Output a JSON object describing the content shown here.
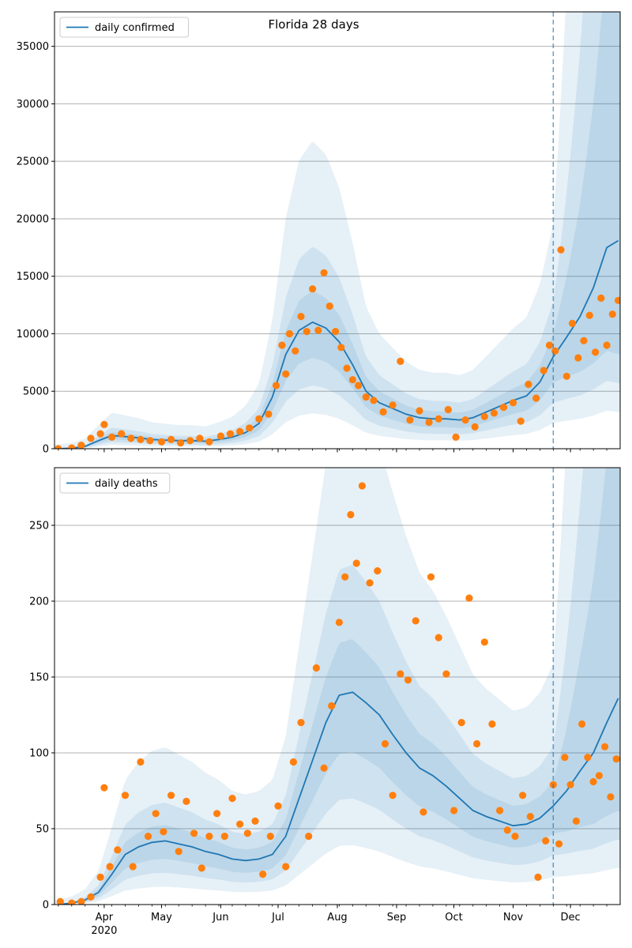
{
  "figure": {
    "title": "Florida 28 days"
  },
  "chart_data": [
    {
      "type": "line",
      "title": "Florida 28 days",
      "legend": {
        "label": "daily confirmed",
        "placement": "top-left"
      },
      "ylim": [
        0,
        38000
      ],
      "yticks": [
        0,
        5000,
        10000,
        15000,
        20000,
        25000,
        30000,
        35000
      ],
      "grid": "horizontal",
      "forecast_start": "2020-11-22",
      "series": [
        {
          "name": "daily confirmed",
          "x": [
            "2020-03-08",
            "2020-03-15",
            "2020-03-22",
            "2020-03-29",
            "2020-04-05",
            "2020-04-12",
            "2020-04-19",
            "2020-04-26",
            "2020-05-03",
            "2020-05-10",
            "2020-05-17",
            "2020-05-24",
            "2020-05-31",
            "2020-06-07",
            "2020-06-14",
            "2020-06-21",
            "2020-06-28",
            "2020-07-05",
            "2020-07-12",
            "2020-07-19",
            "2020-07-26",
            "2020-08-02",
            "2020-08-09",
            "2020-08-16",
            "2020-08-23",
            "2020-08-30",
            "2020-09-06",
            "2020-09-13",
            "2020-09-20",
            "2020-09-27",
            "2020-10-04",
            "2020-10-11",
            "2020-10-18",
            "2020-10-25",
            "2020-11-01",
            "2020-11-08",
            "2020-11-15",
            "2020-11-22",
            "2020-11-29",
            "2020-12-06",
            "2020-12-13",
            "2020-12-20",
            "2020-12-26"
          ],
          "values": [
            0,
            50,
            200,
            700,
            1150,
            1050,
            950,
            800,
            750,
            700,
            700,
            650,
            800,
            1000,
            1400,
            2200,
            4500,
            8200,
            10300,
            11000,
            10500,
            9300,
            7300,
            5000,
            4000,
            3500,
            3000,
            2700,
            2600,
            2600,
            2500,
            2700,
            3200,
            3700,
            4200,
            4600,
            5800,
            8000,
            9700,
            11500,
            14000,
            17500,
            18100
          ]
        }
      ],
      "observed": {
        "x": [
          "2020-03-08",
          "2020-03-15",
          "2020-03-20",
          "2020-03-25",
          "2020-03-30",
          "2020-04-01",
          "2020-04-05",
          "2020-04-10",
          "2020-04-15",
          "2020-04-20",
          "2020-04-25",
          "2020-05-01",
          "2020-05-06",
          "2020-05-11",
          "2020-05-16",
          "2020-05-21",
          "2020-05-26",
          "2020-06-01",
          "2020-06-06",
          "2020-06-11",
          "2020-06-16",
          "2020-06-21",
          "2020-06-26",
          "2020-06-30",
          "2020-07-03",
          "2020-07-05",
          "2020-07-07",
          "2020-07-10",
          "2020-07-13",
          "2020-07-16",
          "2020-07-19",
          "2020-07-22",
          "2020-07-25",
          "2020-07-28",
          "2020-07-31",
          "2020-08-03",
          "2020-08-06",
          "2020-08-09",
          "2020-08-12",
          "2020-08-16",
          "2020-08-20",
          "2020-08-25",
          "2020-08-30",
          "2020-09-03",
          "2020-09-08",
          "2020-09-13",
          "2020-09-18",
          "2020-09-23",
          "2020-09-28",
          "2020-10-02",
          "2020-10-07",
          "2020-10-12",
          "2020-10-17",
          "2020-10-22",
          "2020-10-27",
          "2020-11-01",
          "2020-11-05",
          "2020-11-09",
          "2020-11-13",
          "2020-11-17",
          "2020-11-20",
          "2020-11-23",
          "2020-11-26",
          "2020-11-29",
          "2020-12-02",
          "2020-12-05",
          "2020-12-08",
          "2020-12-11",
          "2020-12-14",
          "2020-12-17",
          "2020-12-20",
          "2020-12-23",
          "2020-12-26"
        ],
        "values": [
          0,
          60,
          300,
          900,
          1300,
          2100,
          1000,
          1300,
          900,
          800,
          700,
          600,
          800,
          500,
          700,
          900,
          600,
          1100,
          1300,
          1500,
          1800,
          2600,
          3000,
          5500,
          9000,
          6500,
          10000,
          8500,
          11500,
          10200,
          13900,
          10300,
          15300,
          12400,
          10200,
          8800,
          7000,
          6000,
          5500,
          4500,
          4200,
          3200,
          3800,
          7600,
          2500,
          3300,
          2300,
          2600,
          3400,
          1000,
          2500,
          1900,
          2800,
          3100,
          3600,
          4000,
          2400,
          5600,
          4400,
          6800,
          9000,
          8500,
          17300,
          6300,
          10900,
          7900,
          9400,
          11600,
          8400,
          13100,
          9000,
          11700,
          12900
        ]
      }
    },
    {
      "type": "line",
      "legend": {
        "label": "daily deaths",
        "placement": "top-left"
      },
      "ylim": [
        0,
        288
      ],
      "yticks": [
        0,
        50,
        100,
        150,
        200,
        250
      ],
      "grid": "horizontal",
      "forecast_start": "2020-11-22",
      "x_ticks": [
        "Apr",
        "May",
        "Jun",
        "Jul",
        "Aug",
        "Sep",
        "Oct",
        "Nov",
        "Dec"
      ],
      "x_year_label": "2020",
      "series": [
        {
          "name": "daily deaths",
          "x": [
            "2020-03-08",
            "2020-03-15",
            "2020-03-22",
            "2020-03-29",
            "2020-04-05",
            "2020-04-12",
            "2020-04-19",
            "2020-04-26",
            "2020-05-03",
            "2020-05-10",
            "2020-05-17",
            "2020-05-24",
            "2020-05-31",
            "2020-06-07",
            "2020-06-14",
            "2020-06-21",
            "2020-06-28",
            "2020-07-05",
            "2020-07-12",
            "2020-07-19",
            "2020-07-26",
            "2020-08-02",
            "2020-08-09",
            "2020-08-16",
            "2020-08-23",
            "2020-08-30",
            "2020-09-06",
            "2020-09-13",
            "2020-09-20",
            "2020-09-27",
            "2020-10-04",
            "2020-10-11",
            "2020-10-18",
            "2020-10-25",
            "2020-11-01",
            "2020-11-08",
            "2020-11-15",
            "2020-11-22",
            "2020-11-29",
            "2020-12-06",
            "2020-12-13",
            "2020-12-20",
            "2020-12-26"
          ],
          "values": [
            0,
            1,
            3,
            8,
            20,
            33,
            38,
            41,
            42,
            40,
            38,
            35,
            33,
            30,
            29,
            30,
            33,
            45,
            70,
            95,
            120,
            138,
            140,
            133,
            125,
            112,
            100,
            90,
            85,
            78,
            70,
            62,
            58,
            55,
            52,
            53,
            57,
            65,
            75,
            88,
            100,
            120,
            136
          ]
        }
      ],
      "observed": {
        "x": [
          "2020-03-09",
          "2020-03-15",
          "2020-03-20",
          "2020-03-25",
          "2020-03-30",
          "2020-04-01",
          "2020-04-04",
          "2020-04-08",
          "2020-04-12",
          "2020-04-16",
          "2020-04-20",
          "2020-04-24",
          "2020-04-28",
          "2020-05-02",
          "2020-05-06",
          "2020-05-10",
          "2020-05-14",
          "2020-05-18",
          "2020-05-22",
          "2020-05-26",
          "2020-05-30",
          "2020-06-03",
          "2020-06-07",
          "2020-06-11",
          "2020-06-15",
          "2020-06-19",
          "2020-06-23",
          "2020-06-27",
          "2020-07-01",
          "2020-07-05",
          "2020-07-09",
          "2020-07-13",
          "2020-07-17",
          "2020-07-21",
          "2020-07-25",
          "2020-07-29",
          "2020-08-02",
          "2020-08-05",
          "2020-08-08",
          "2020-08-11",
          "2020-08-14",
          "2020-08-18",
          "2020-08-22",
          "2020-08-26",
          "2020-08-30",
          "2020-09-03",
          "2020-09-07",
          "2020-09-11",
          "2020-09-15",
          "2020-09-19",
          "2020-09-23",
          "2020-09-27",
          "2020-10-01",
          "2020-10-05",
          "2020-10-09",
          "2020-10-13",
          "2020-10-17",
          "2020-10-21",
          "2020-10-25",
          "2020-10-29",
          "2020-11-02",
          "2020-11-06",
          "2020-11-10",
          "2020-11-14",
          "2020-11-18",
          "2020-11-22",
          "2020-11-25",
          "2020-11-28",
          "2020-12-01",
          "2020-12-04",
          "2020-12-07",
          "2020-12-10",
          "2020-12-13",
          "2020-12-16",
          "2020-12-19",
          "2020-12-22",
          "2020-12-25"
        ],
        "values": [
          2,
          1,
          2,
          5,
          18,
          77,
          25,
          36,
          72,
          25,
          94,
          45,
          60,
          48,
          72,
          35,
          68,
          47,
          24,
          45,
          60,
          45,
          70,
          53,
          47,
          55,
          20,
          45,
          65,
          25,
          94,
          120,
          45,
          156,
          90,
          131,
          186,
          216,
          257,
          225,
          276,
          212,
          220,
          106,
          72,
          152,
          148,
          187,
          61,
          216,
          176,
          152,
          62,
          120,
          202,
          106,
          173,
          119,
          62,
          49,
          45,
          72,
          58,
          18,
          42,
          79,
          40,
          97,
          79,
          55,
          119,
          97,
          81,
          85,
          104,
          71,
          96
        ]
      }
    }
  ],
  "colors": {
    "line": "#1f77b4",
    "band": "#1f77b4",
    "points": "#ff7f0e",
    "grid": "#b0b0b0",
    "forecast_marker": "#1f77b4"
  }
}
